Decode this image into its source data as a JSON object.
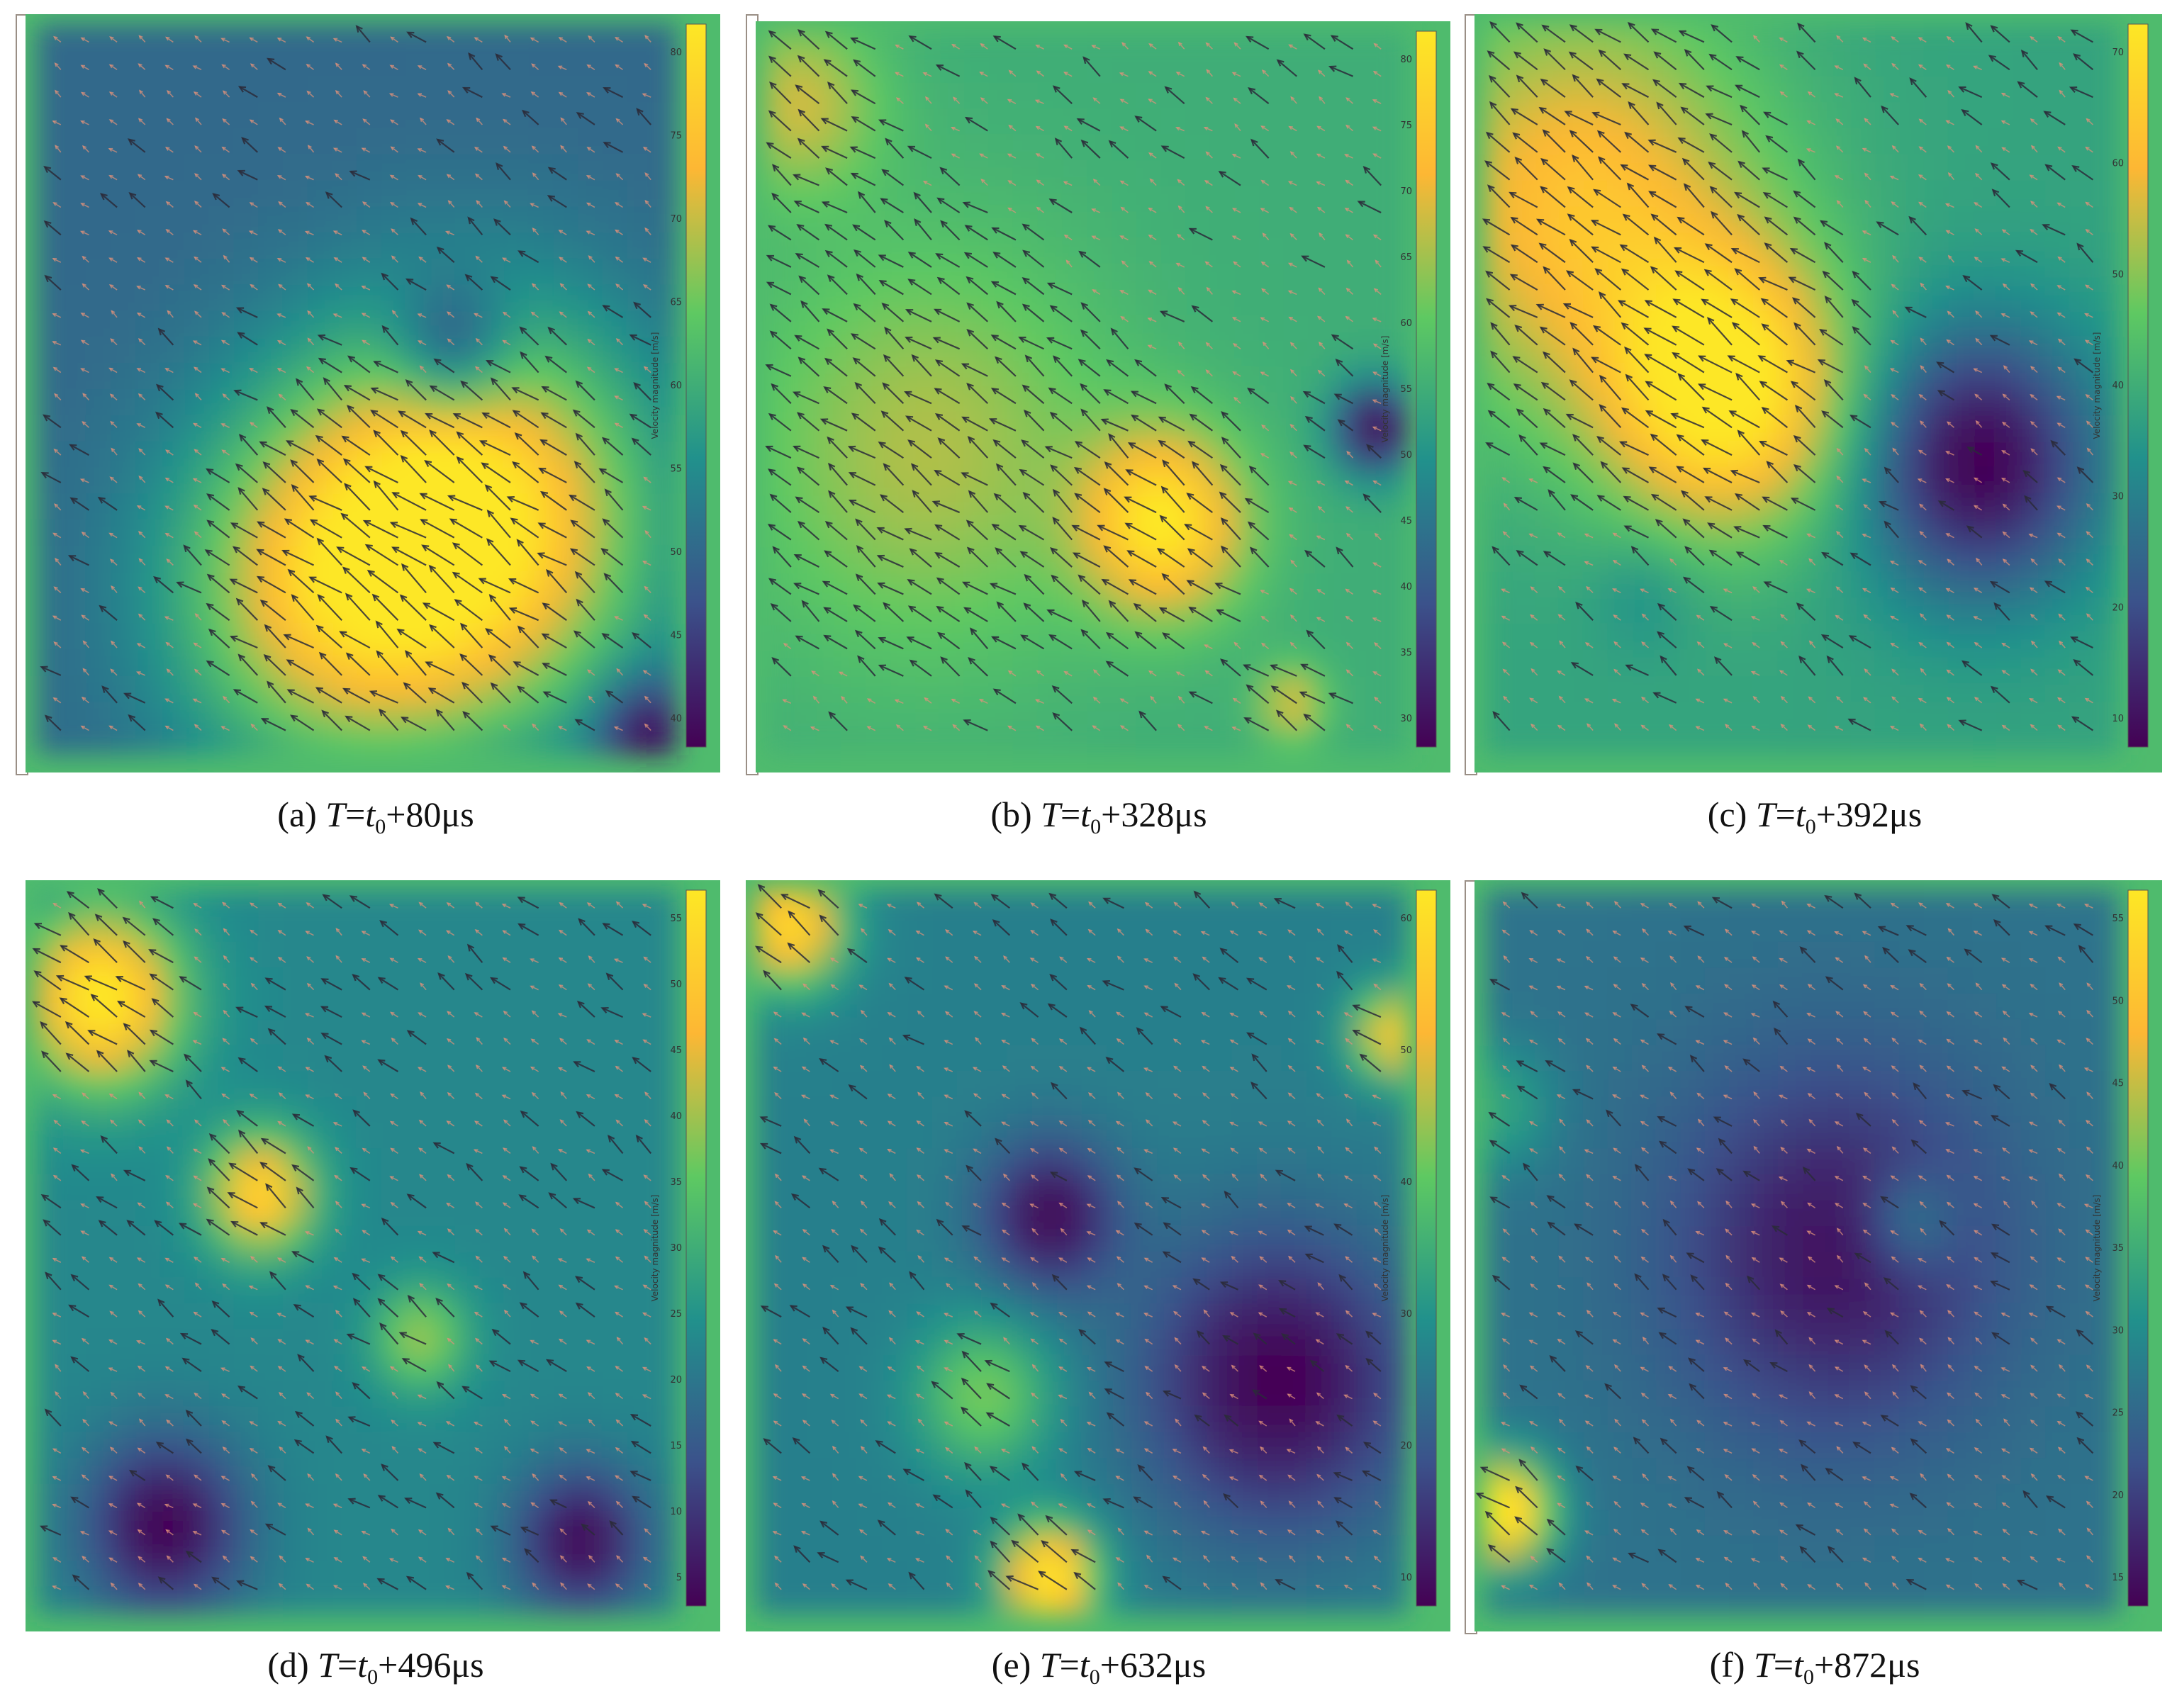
{
  "colormap": [
    "#440154",
    "#3b528b",
    "#21918c",
    "#5ec962",
    "#fdb734",
    "#fde725"
  ],
  "colorbar_label": "Velocity magnitude [m/s]",
  "panels": [
    {
      "label": "(a)",
      "prefix": "T",
      "eq": "=",
      "t": "t",
      "sub": "0",
      "rest": "+80μs",
      "ticks": [
        "80",
        "75",
        "70",
        "65",
        "60",
        "55",
        "50",
        "45",
        "40"
      ]
    },
    {
      "label": "(b)",
      "prefix": "T",
      "eq": "=",
      "t": "t",
      "sub": "0",
      "rest": "+328μs",
      "ticks": [
        "80",
        "75",
        "70",
        "65",
        "60",
        "55",
        "50",
        "45",
        "40",
        "35",
        "30"
      ]
    },
    {
      "label": "(c)",
      "prefix": "T",
      "eq": "=",
      "t": "t",
      "sub": "0",
      "rest": "+392μs",
      "ticks": [
        "70",
        "60",
        "50",
        "40",
        "30",
        "20",
        "10"
      ]
    },
    {
      "label": "(d)",
      "prefix": "T",
      "eq": "=",
      "t": "t",
      "sub": "0",
      "rest": "+496μs",
      "ticks": [
        "55",
        "50",
        "45",
        "40",
        "35",
        "30",
        "25",
        "20",
        "15",
        "10",
        "5"
      ]
    },
    {
      "label": "(e)",
      "prefix": "T",
      "eq": "=",
      "t": "t",
      "sub": "0",
      "rest": "+632μs",
      "ticks": [
        "60",
        "50",
        "40",
        "30",
        "20",
        "10"
      ]
    },
    {
      "label": "(f)",
      "prefix": "T",
      "eq": "=",
      "t": "t",
      "sub": "0",
      "rest": "+872μs",
      "ticks": [
        "55",
        "50",
        "45",
        "40",
        "35",
        "30",
        "25",
        "20",
        "15"
      ]
    }
  ],
  "chart_data": [
    {
      "type": "heatmap",
      "title": "(a) T=t0+80μs",
      "colorbar_label": "Velocity magnitude [m/s]",
      "colorbar_range": [
        38,
        82
      ],
      "blobs": [
        {
          "x": 0.68,
          "y": 0.68,
          "s": 0.26,
          "v": 82
        },
        {
          "x": 0.45,
          "y": 0.78,
          "s": 0.24,
          "v": 70
        },
        {
          "x": 0.65,
          "y": 0.45,
          "s": 0.09,
          "v": 36
        },
        {
          "x": 0.95,
          "y": 0.97,
          "s": 0.07,
          "v": 36
        }
      ],
      "base": 50
    },
    {
      "type": "heatmap",
      "title": "(b) T=t0+328μs",
      "colorbar_label": "Velocity magnitude [m/s]",
      "colorbar_range": [
        28,
        82
      ],
      "blobs": [
        {
          "x": 0.62,
          "y": 0.68,
          "s": 0.12,
          "v": 82
        },
        {
          "x": 0.25,
          "y": 0.58,
          "s": 0.28,
          "v": 66
        },
        {
          "x": 0.05,
          "y": 0.1,
          "s": 0.12,
          "v": 68
        },
        {
          "x": 0.82,
          "y": 0.93,
          "s": 0.05,
          "v": 70
        },
        {
          "x": 0.95,
          "y": 0.55,
          "s": 0.06,
          "v": 26
        }
      ],
      "base": 55
    },
    {
      "type": "heatmap",
      "title": "(c) T=t0+392μs",
      "colorbar_label": "Velocity magnitude [m/s]",
      "colorbar_range": [
        2,
        75
      ],
      "blobs": [
        {
          "x": 0.38,
          "y": 0.5,
          "s": 0.18,
          "v": 78
        },
        {
          "x": 0.15,
          "y": 0.25,
          "s": 0.28,
          "v": 64
        },
        {
          "x": 0.78,
          "y": 0.6,
          "s": 0.18,
          "v": 2
        },
        {
          "x": 0.25,
          "y": 0.78,
          "s": 0.08,
          "v": 30
        }
      ],
      "base": 36
    },
    {
      "type": "heatmap",
      "title": "(d) T=t0+496μs",
      "colorbar_label": "Velocity magnitude [m/s]",
      "colorbar_range": [
        1,
        58
      ],
      "blobs": [
        {
          "x": 0.1,
          "y": 0.15,
          "s": 0.12,
          "v": 60
        },
        {
          "x": 0.35,
          "y": 0.42,
          "s": 0.08,
          "v": 55
        },
        {
          "x": 0.6,
          "y": 0.62,
          "s": 0.07,
          "v": 40
        },
        {
          "x": 0.2,
          "y": 0.88,
          "s": 0.12,
          "v": 1
        },
        {
          "x": 0.85,
          "y": 0.9,
          "s": 0.1,
          "v": 2
        }
      ],
      "base": 22
    },
    {
      "type": "heatmap",
      "title": "(e) T=t0+632μs",
      "colorbar_label": "Velocity magnitude [m/s]",
      "colorbar_range": [
        1,
        62
      ],
      "blobs": [
        {
          "x": 0.45,
          "y": 0.95,
          "s": 0.07,
          "v": 66
        },
        {
          "x": 0.05,
          "y": 0.05,
          "s": 0.08,
          "v": 60
        },
        {
          "x": 0.98,
          "y": 0.2,
          "s": 0.06,
          "v": 55
        },
        {
          "x": 0.8,
          "y": 0.68,
          "s": 0.2,
          "v": 1
        },
        {
          "x": 0.45,
          "y": 0.45,
          "s": 0.1,
          "v": 2
        },
        {
          "x": 0.35,
          "y": 0.7,
          "s": 0.1,
          "v": 40
        }
      ],
      "base": 22
    },
    {
      "type": "heatmap",
      "title": "(f) T=t0+872μs",
      "colorbar_label": "Velocity magnitude [m/s]",
      "colorbar_range": [
        12,
        58
      ],
      "blobs": [
        {
          "x": 0.03,
          "y": 0.86,
          "s": 0.07,
          "v": 62
        },
        {
          "x": 0.55,
          "y": 0.5,
          "s": 0.25,
          "v": 14
        },
        {
          "x": 0.02,
          "y": 0.3,
          "s": 0.08,
          "v": 34
        },
        {
          "x": 0.67,
          "y": 0.46,
          "s": 0.07,
          "v": 34
        }
      ],
      "base": 26
    }
  ]
}
